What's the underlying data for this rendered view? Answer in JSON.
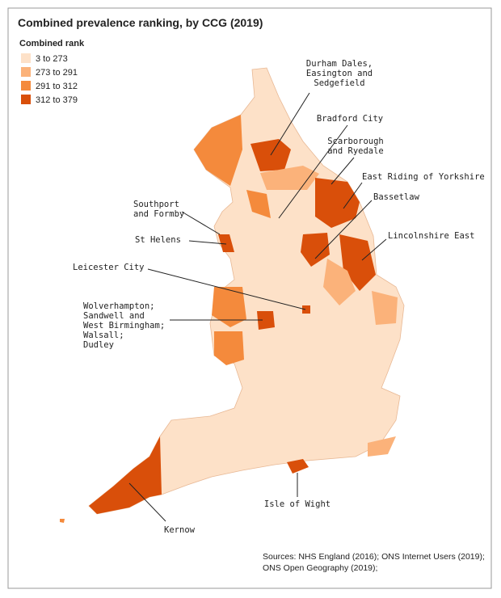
{
  "title": "Combined prevalence ranking, by CCG (2019)",
  "legend": {
    "title": "Combined rank",
    "items": [
      {
        "label": "3 to 273",
        "color": "#fde1c8"
      },
      {
        "label": "273 to 291",
        "color": "#fbb27a"
      },
      {
        "label": "291 to 312",
        "color": "#f48a3c"
      },
      {
        "label": "312 to 379",
        "color": "#d94f0a"
      }
    ]
  },
  "annotations": [
    {
      "lines": [
        "Durham Dales,",
        "Easington and",
        "Sedgefield"
      ]
    },
    {
      "lines": [
        "Bradford City"
      ]
    },
    {
      "lines": [
        "Scarborough",
        "and Ryedale"
      ]
    },
    {
      "lines": [
        "East Riding of Yorkshire"
      ]
    },
    {
      "lines": [
        "Bassetlaw"
      ]
    },
    {
      "lines": [
        "Lincolnshire East"
      ]
    },
    {
      "lines": [
        "Southport",
        "and Formby"
      ]
    },
    {
      "lines": [
        "St Helens"
      ]
    },
    {
      "lines": [
        "Leicester City"
      ]
    },
    {
      "lines": [
        "Wolverhampton;",
        "Sandwell and",
        "West Birmingham;",
        "Walsall;",
        "Dudley"
      ]
    },
    {
      "lines": [
        "Isle of Wight"
      ]
    },
    {
      "lines": [
        "Kernow"
      ]
    }
  ],
  "sources": [
    "Sources: NHS England (2016); ONS Internet Users (2019);",
    "ONS Open Geography (2019);"
  ]
}
